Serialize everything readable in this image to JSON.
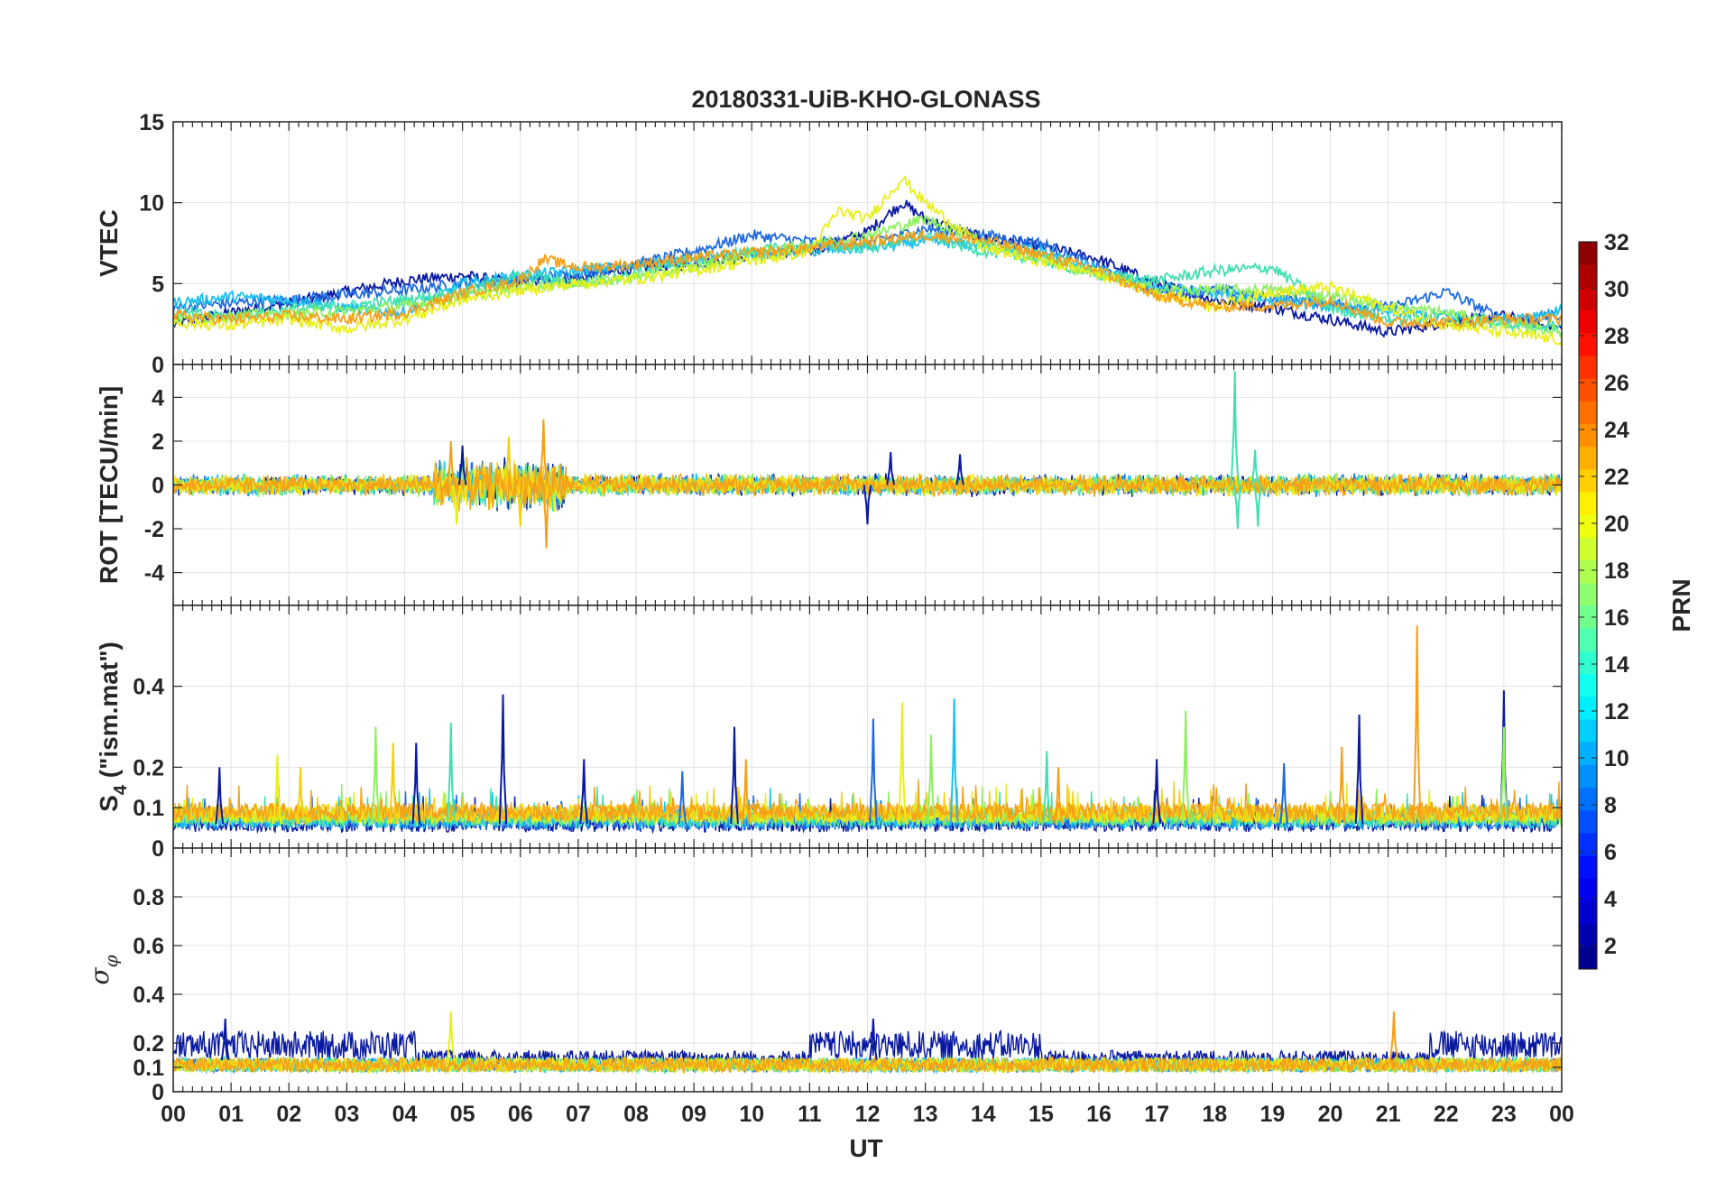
{
  "chart_data": {
    "type": "line",
    "title": "20180331-UiB-KHO-GLONASS",
    "xlabel": "UT",
    "x_tick_labels": [
      "00",
      "01",
      "02",
      "03",
      "04",
      "05",
      "06",
      "07",
      "08",
      "09",
      "10",
      "11",
      "12",
      "13",
      "14",
      "15",
      "16",
      "17",
      "18",
      "19",
      "20",
      "21",
      "22",
      "23",
      "00"
    ],
    "xlim": [
      0,
      24
    ],
    "colors": {
      "prn_1_4": "#0a1aa0",
      "prn_5_8": "#1f6ae0",
      "prn_9_12": "#19c0f0",
      "prn_13_16": "#40e0b0",
      "prn_17_18": "#8ef060",
      "prn_19_20": "#e8f01a",
      "prn_21_22": "#f5d010",
      "prn_23_24": "#f5a018",
      "prn_25_26": "#f06a10"
    },
    "panels": [
      {
        "id": "vtec",
        "ylabel": "VTEC",
        "ylim": [
          0,
          15
        ],
        "y_ticks": [
          0,
          5,
          10,
          15
        ],
        "y_tick_labels": [
          "0",
          "5",
          "10",
          "15"
        ],
        "series": [
          {
            "prn": 2,
            "color": "#0a1aa0",
            "x": [
              0,
              1,
              2,
              3,
              4,
              5,
              6,
              7,
              8,
              9,
              10,
              11,
              12,
              12.6,
              13,
              14,
              15,
              16,
              17,
              18,
              19,
              20,
              21,
              22,
              23,
              24
            ],
            "y": [
              2.5,
              3.2,
              3.8,
              4.5,
              5.2,
              5.5,
              5.0,
              5.3,
              6.0,
              6.2,
              6.8,
              7.0,
              8.2,
              10.0,
              9.0,
              7.8,
              7.3,
              6.5,
              5.0,
              4.0,
              3.5,
              2.8,
              2.0,
              2.6,
              3.0,
              2.2
            ]
          },
          {
            "prn": 6,
            "color": "#1f6ae0",
            "x": [
              0,
              1,
              2,
              3,
              4,
              5,
              6,
              7,
              8,
              9,
              10,
              11,
              12,
              13,
              14,
              15,
              16,
              17,
              18,
              19,
              20,
              21,
              22,
              23,
              24
            ],
            "y": [
              3.5,
              3.8,
              4.0,
              4.3,
              4.6,
              5.0,
              5.2,
              5.6,
              6.2,
              7.0,
              8.0,
              7.6,
              7.5,
              8.4,
              8.0,
              7.5,
              6.0,
              4.5,
              4.6,
              4.2,
              3.8,
              3.5,
              4.5,
              2.8,
              3.0
            ]
          },
          {
            "prn": 10,
            "color": "#19c0f0",
            "x": [
              0,
              1,
              2,
              3,
              4,
              5,
              6,
              7,
              8,
              9,
              10,
              11,
              12,
              13,
              14,
              15,
              16,
              17,
              18,
              19,
              20,
              21,
              22,
              23,
              24
            ],
            "y": [
              3.8,
              4.2,
              4.0,
              3.5,
              3.2,
              5.0,
              5.5,
              5.8,
              6.2,
              6.5,
              6.8,
              7.0,
              7.2,
              7.6,
              7.4,
              7.0,
              5.8,
              4.8,
              4.4,
              4.0,
              3.6,
              3.2,
              3.0,
              2.8,
              3.3
            ]
          },
          {
            "prn": 14,
            "color": "#40e0b0",
            "x": [
              0,
              1,
              2,
              3,
              4,
              5,
              6,
              7,
              8,
              9,
              10,
              11,
              12,
              13,
              14,
              15,
              16,
              17,
              18,
              19,
              20,
              21,
              22,
              23,
              24
            ],
            "y": [
              3.2,
              3.0,
              3.4,
              3.6,
              4.0,
              4.5,
              5.5,
              5.0,
              5.6,
              6.5,
              7.0,
              7.4,
              7.2,
              8.0,
              7.0,
              6.5,
              5.5,
              5.2,
              5.8,
              6.0,
              3.5,
              2.8,
              2.6,
              2.5,
              2.4
            ]
          },
          {
            "prn": 18,
            "color": "#8ef060",
            "x": [
              0,
              1,
              2,
              3,
              4,
              5,
              6,
              7,
              8,
              9,
              10,
              11,
              12,
              13,
              14,
              15,
              16,
              17,
              18,
              19,
              20,
              21,
              22,
              23,
              24
            ],
            "y": [
              2.8,
              3.0,
              3.1,
              3.3,
              3.6,
              4.2,
              4.8,
              5.0,
              5.4,
              6.0,
              6.8,
              7.4,
              8.0,
              9.0,
              7.6,
              6.6,
              5.6,
              4.6,
              4.6,
              4.6,
              4.2,
              3.6,
              3.2,
              2.6,
              2.0
            ]
          },
          {
            "prn": 19,
            "color": "#e8f01a",
            "x": [
              0,
              1,
              2,
              3,
              4,
              5,
              6,
              7,
              8,
              9,
              10,
              11,
              11.5,
              12,
              12.6,
              13,
              14,
              15,
              16,
              17,
              18,
              19,
              20,
              21,
              22,
              23,
              24
            ],
            "y": [
              2.6,
              2.4,
              2.8,
              2.2,
              2.8,
              4.0,
              4.6,
              5.0,
              5.3,
              5.8,
              6.4,
              7.0,
              9.5,
              9.0,
              11.5,
              10.0,
              7.2,
              6.4,
              5.6,
              4.4,
              3.6,
              4.5,
              4.8,
              3.5,
              2.5,
              2.0,
              1.5
            ]
          },
          {
            "prn": 23,
            "color": "#f5a018",
            "x": [
              0,
              1,
              2,
              3,
              4,
              5,
              6,
              6.4,
              7,
              8,
              9,
              10,
              11,
              12,
              13,
              14,
              15,
              16,
              17,
              18,
              19,
              20,
              21,
              22,
              23,
              24
            ],
            "y": [
              3.0,
              2.8,
              3.0,
              2.8,
              3.2,
              4.4,
              5.2,
              6.5,
              6.0,
              6.2,
              6.6,
              6.9,
              7.2,
              7.6,
              8.0,
              7.7,
              6.8,
              5.8,
              4.2,
              3.6,
              3.6,
              4.0,
              2.6,
              2.6,
              2.8,
              2.8
            ]
          }
        ]
      },
      {
        "id": "rot",
        "ylabel": "ROT [TECU/min]",
        "ylim": [
          -5.5,
          5.5
        ],
        "y_ticks": [
          -4,
          -2,
          0,
          2,
          4
        ],
        "y_tick_labels": [
          "-4",
          "-2",
          "0",
          "2",
          "4"
        ],
        "description_values": {
          "baseline": 0,
          "typical_amplitude": 0.4
        },
        "spikes": [
          {
            "x": 4.8,
            "y": 2.0,
            "color": "#f5a018"
          },
          {
            "x": 4.9,
            "y": -1.8,
            "color": "#e8f01a"
          },
          {
            "x": 5.0,
            "y": 1.8,
            "color": "#0a1aa0"
          },
          {
            "x": 5.8,
            "y": 2.2,
            "color": "#f5d010"
          },
          {
            "x": 6.0,
            "y": -1.9,
            "color": "#f5d010"
          },
          {
            "x": 6.4,
            "y": 3.0,
            "color": "#f5a018"
          },
          {
            "x": 6.45,
            "y": -2.9,
            "color": "#f5a018"
          },
          {
            "x": 12.0,
            "y": -1.8,
            "color": "#0a1aa0"
          },
          {
            "x": 12.4,
            "y": 1.5,
            "color": "#0a1aa0"
          },
          {
            "x": 13.6,
            "y": 1.4,
            "color": "#0a1aa0"
          },
          {
            "x": 18.35,
            "y": 5.2,
            "color": "#40e0b0"
          },
          {
            "x": 18.4,
            "y": -2.0,
            "color": "#40e0b0"
          },
          {
            "x": 18.7,
            "y": 1.6,
            "color": "#40e0b0"
          },
          {
            "x": 18.75,
            "y": -1.9,
            "color": "#40e0b0"
          }
        ]
      },
      {
        "id": "s4",
        "ylabel": "S4 (\"ism.mat\")",
        "ylabel_main": "S",
        "ylabel_sub": "4",
        "ylabel_rest": " (\"ism.mat\")",
        "ylim": [
          0,
          0.6
        ],
        "y_ticks": [
          0,
          0.1,
          0.2,
          0.4
        ],
        "y_tick_labels": [
          "0",
          "0.1",
          "0.2",
          "0.4"
        ],
        "description_values": {
          "baseline": 0.05
        },
        "spikes": [
          {
            "x": 0.8,
            "y": 0.2,
            "color": "#0a1aa0"
          },
          {
            "x": 1.8,
            "y": 0.23,
            "color": "#e8f01a"
          },
          {
            "x": 2.2,
            "y": 0.2,
            "color": "#f5d010"
          },
          {
            "x": 3.5,
            "y": 0.3,
            "color": "#8ef060"
          },
          {
            "x": 3.8,
            "y": 0.26,
            "color": "#f5d010"
          },
          {
            "x": 4.2,
            "y": 0.26,
            "color": "#0a1aa0"
          },
          {
            "x": 4.8,
            "y": 0.31,
            "color": "#40e0b0"
          },
          {
            "x": 5.7,
            "y": 0.38,
            "color": "#0a1aa0"
          },
          {
            "x": 7.1,
            "y": 0.22,
            "color": "#0a1aa0"
          },
          {
            "x": 8.8,
            "y": 0.19,
            "color": "#1f6ae0"
          },
          {
            "x": 9.7,
            "y": 0.3,
            "color": "#0a1aa0"
          },
          {
            "x": 9.9,
            "y": 0.22,
            "color": "#f5a018"
          },
          {
            "x": 12.1,
            "y": 0.32,
            "color": "#1f6ae0"
          },
          {
            "x": 12.6,
            "y": 0.36,
            "color": "#e8f01a"
          },
          {
            "x": 13.1,
            "y": 0.28,
            "color": "#8ef060"
          },
          {
            "x": 13.5,
            "y": 0.37,
            "color": "#19c0f0"
          },
          {
            "x": 15.1,
            "y": 0.24,
            "color": "#40e0b0"
          },
          {
            "x": 15.3,
            "y": 0.2,
            "color": "#f5a018"
          },
          {
            "x": 17.0,
            "y": 0.22,
            "color": "#0a1aa0"
          },
          {
            "x": 17.5,
            "y": 0.34,
            "color": "#8ef060"
          },
          {
            "x": 19.2,
            "y": 0.21,
            "color": "#1f6ae0"
          },
          {
            "x": 20.5,
            "y": 0.33,
            "color": "#0a1aa0"
          },
          {
            "x": 20.2,
            "y": 0.25,
            "color": "#f5a018"
          },
          {
            "x": 21.5,
            "y": 0.55,
            "color": "#f5a018"
          },
          {
            "x": 23.0,
            "y": 0.39,
            "color": "#0a1aa0"
          },
          {
            "x": 23.0,
            "y": 0.3,
            "color": "#8ef060"
          }
        ]
      },
      {
        "id": "sigma_phi",
        "ylabel": "σ φ",
        "ylabel_main": "σ",
        "ylabel_sub": "φ",
        "ylim": [
          0,
          1.0
        ],
        "y_ticks": [
          0,
          0.1,
          0.2,
          0.4,
          0.6,
          0.8
        ],
        "y_tick_labels": [
          "0",
          "0.1",
          "0.2",
          "0.4",
          "0.6",
          "0.8"
        ],
        "description_values": {
          "baseline": 0.12,
          "dark_blue_band": 0.2
        },
        "spikes": [
          {
            "x": 4.8,
            "y": 0.33,
            "color": "#e8f01a"
          },
          {
            "x": 21.1,
            "y": 0.33,
            "color": "#f5a018"
          },
          {
            "x": 0.9,
            "y": 0.3,
            "color": "#0a1aa0"
          },
          {
            "x": 12.1,
            "y": 0.3,
            "color": "#0a1aa0"
          }
        ]
      }
    ],
    "colorbar": {
      "label": "PRN",
      "range": [
        1,
        32
      ],
      "tick_labels": [
        "2",
        "4",
        "6",
        "8",
        "10",
        "12",
        "14",
        "16",
        "18",
        "20",
        "22",
        "24",
        "26",
        "28",
        "30",
        "32"
      ],
      "ticks": [
        2,
        4,
        6,
        8,
        10,
        12,
        14,
        16,
        18,
        20,
        22,
        24,
        26,
        28,
        30,
        32
      ],
      "colormap": "jet"
    }
  }
}
